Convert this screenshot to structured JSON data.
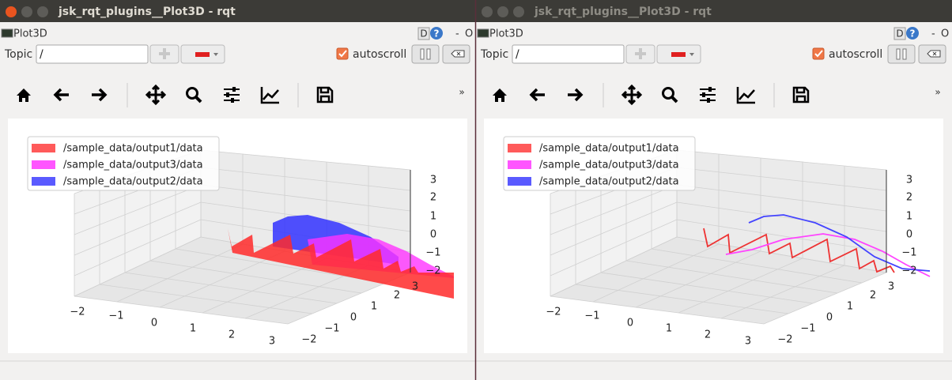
{
  "windows": [
    {
      "title": "jsk_rqt_plugins__Plot3D - rqt",
      "plugin": "Plot3D",
      "help_d": "D",
      "help_q": "?",
      "minimize": "-",
      "float": "O",
      "topic_label": "Topic",
      "topic_value": "/",
      "autoscroll": "autoscroll",
      "toolbar_more": "»",
      "legend": [
        "/sample_data/output1/data",
        "/sample_data/output3/data",
        "/sample_data/output2/data"
      ],
      "x_ticks": [
        "−2",
        "−1",
        "0",
        "1",
        "2",
        "3"
      ],
      "y_ticks": [
        "−2",
        "−1",
        "0",
        "1",
        "2",
        "3"
      ],
      "z_ticks": [
        "3",
        "2",
        "1",
        "0",
        "−1",
        "−2"
      ]
    },
    {
      "title": "jsk_rqt_plugins__Plot3D - rqt",
      "plugin": "Plot3D",
      "help_d": "D",
      "help_q": "?",
      "minimize": "-",
      "float": "O",
      "topic_label": "Topic",
      "topic_value": "/",
      "autoscroll": "autoscroll",
      "toolbar_more": "»",
      "legend": [
        "/sample_data/output1/data",
        "/sample_data/output3/data",
        "/sample_data/output2/data"
      ],
      "x_ticks": [
        "−2",
        "−1",
        "0",
        "1",
        "2",
        "3"
      ],
      "y_ticks": [
        "−2",
        "−1",
        "0",
        "1",
        "2",
        "3"
      ],
      "z_ticks": [
        "3",
        "2",
        "1",
        "0",
        "−1",
        "−2"
      ]
    }
  ]
}
